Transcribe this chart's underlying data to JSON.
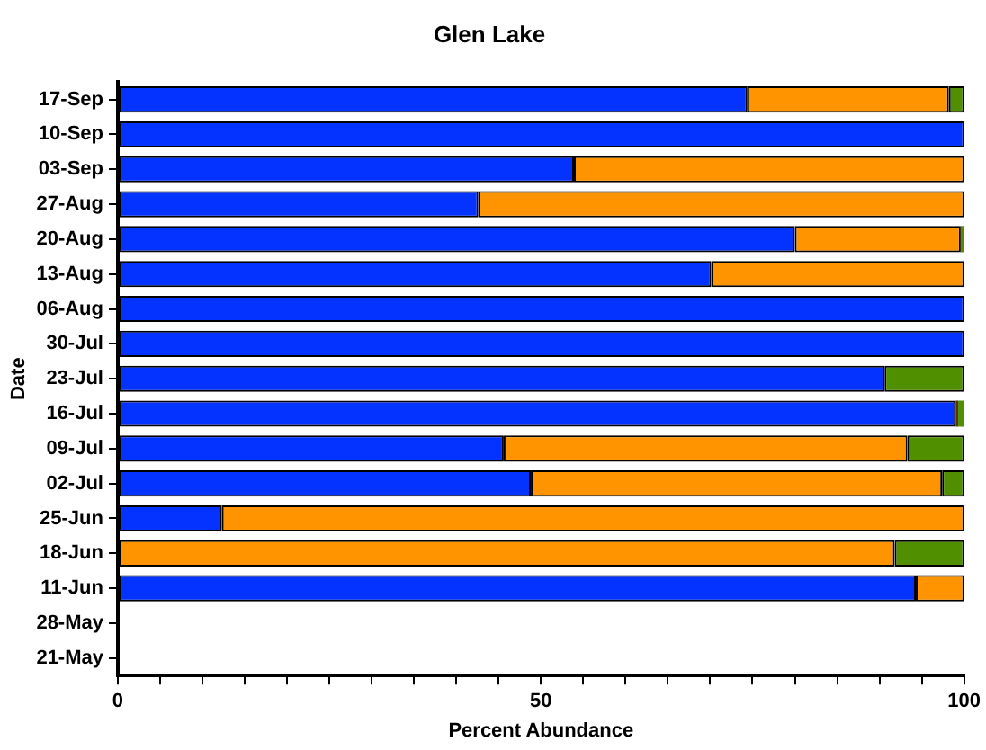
{
  "chart_data": {
    "type": "bar",
    "title": "Glen Lake",
    "xlabel": "Percent Abundance",
    "ylabel": "Date",
    "orientation": "horizontal",
    "stacked": true,
    "grid": false,
    "legend": false,
    "categories": [
      "17-Sep",
      "10-Sep",
      "03-Sep",
      "27-Aug",
      "20-Aug",
      "13-Aug",
      "06-Aug",
      "30-Jul",
      "23-Jul",
      "16-Jul",
      "09-Jul",
      "02-Jul",
      "25-Jun",
      "18-Jun",
      "11-Jun",
      "28-May",
      "21-May"
    ],
    "xlim": [
      0,
      100
    ],
    "xticks": [
      0,
      {
        "value": 5,
        "label": null
      },
      {
        "value": 10,
        "label": null
      },
      {
        "value": 15,
        "label": null
      },
      {
        "value": 20,
        "label": null
      },
      {
        "value": 25,
        "label": null
      },
      {
        "value": 30,
        "label": null
      },
      {
        "value": 35,
        "label": null
      },
      {
        "value": 40,
        "label": null
      },
      {
        "value": 45,
        "label": null
      },
      50,
      {
        "value": 55,
        "label": null
      },
      {
        "value": 60,
        "label": null
      },
      {
        "value": 65,
        "label": null
      },
      {
        "value": 70,
        "label": null
      },
      {
        "value": 75,
        "label": null
      },
      {
        "value": 80,
        "label": null
      },
      {
        "value": 85,
        "label": null
      },
      {
        "value": 90,
        "label": null
      },
      {
        "value": 95,
        "label": null
      },
      100
    ],
    "series": [
      {
        "color": "#0433ff",
        "values": [
          74.4,
          100,
          53.9,
          42.6,
          80.0,
          70.1,
          100,
          100,
          90.6,
          99.0,
          45.6,
          48.8,
          12.3,
          null,
          94.3,
          null,
          null
        ]
      },
      {
        "color": "#ff9300",
        "values": [
          23.8,
          null,
          46.1,
          57.4,
          19.6,
          29.9,
          null,
          null,
          null,
          null,
          47.7,
          48.6,
          87.7,
          91.8,
          5.7,
          null,
          null
        ]
      },
      {
        "color": "#5c2e0a",
        "values": [
          null,
          null,
          null,
          null,
          null,
          null,
          null,
          null,
          null,
          0.3,
          null,
          null,
          null,
          null,
          null,
          null,
          null
        ]
      },
      {
        "color": "#4f8f00",
        "values": [
          1.8,
          null,
          null,
          null,
          0.4,
          null,
          null,
          null,
          9.4,
          0.7,
          6.7,
          2.6,
          null,
          8.2,
          null,
          null,
          null
        ]
      }
    ]
  }
}
